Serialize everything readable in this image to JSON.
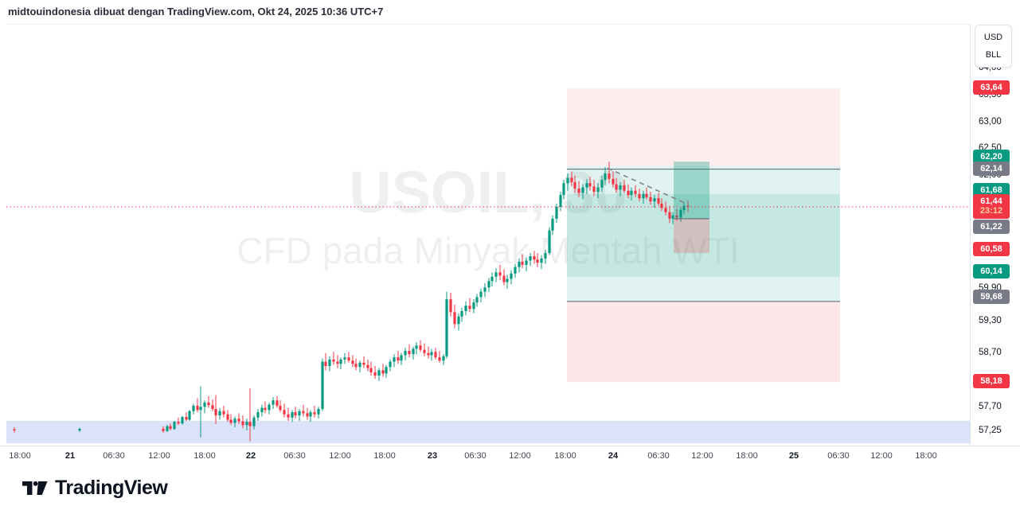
{
  "header": {
    "attribution": "midtouindonesia dibuat dengan TradingView.com, Okt 24, 2025 10:36 UTC+7"
  },
  "watermark": {
    "line1": "USOIL, 30",
    "line2": "CFD pada Minyak Mentah WTI"
  },
  "currency_toggle": {
    "options": [
      "USD",
      "BLL"
    ]
  },
  "footer": {
    "brand": "TradingView"
  },
  "colors": {
    "up": "#089981",
    "down": "#f23645",
    "neutral_badge": "#787b86",
    "axis_border": "#e0e3eb"
  },
  "chart_data": {
    "type": "candlestick",
    "symbol": "USOIL",
    "interval": "30",
    "description": "CFD pada Minyak Mentah WTI",
    "last_price": 61.44,
    "countdown": "23:12",
    "ylim": [
      56.98,
      64.83
    ],
    "price_axis": {
      "plain_ticks": [
        {
          "label": "64,00",
          "price": 64.0
        },
        {
          "label": "63,50",
          "price": 63.5
        },
        {
          "label": "63,00",
          "price": 63.0
        },
        {
          "label": "62,50",
          "price": 62.5
        },
        {
          "label": "62,00",
          "price": 62.0
        },
        {
          "label": "59,90",
          "price": 59.9
        },
        {
          "label": "59,30",
          "price": 59.3
        },
        {
          "label": "58,70",
          "price": 58.7
        },
        {
          "label": "57,70",
          "price": 57.7
        },
        {
          "label": "57,25",
          "price": 57.25
        }
      ],
      "badges": [
        {
          "label": "63,64",
          "price": 63.64,
          "color": "#f23645",
          "shift": 0
        },
        {
          "label": "62,20",
          "price": 62.2,
          "color": "#089981",
          "shift": -11
        },
        {
          "label": "62,14",
          "price": 62.14,
          "color": "#787b86",
          "shift": 0
        },
        {
          "label": "61,68",
          "price": 61.68,
          "color": "#089981",
          "shift": -4
        },
        {
          "label": "61,44",
          "price": 61.44,
          "color": "#f23645",
          "shift": 0,
          "sub": "23:12",
          "tall": true
        },
        {
          "label": "61,22",
          "price": 61.22,
          "color": "#787b86",
          "shift": 11
        },
        {
          "label": "60,58",
          "price": 60.58,
          "color": "#f23645",
          "shift": -4
        },
        {
          "label": "60,14",
          "price": 60.14,
          "color": "#089981",
          "shift": -6
        },
        {
          "label": "59,68",
          "price": 59.68,
          "color": "#787b86",
          "shift": -5
        },
        {
          "label": "58,18",
          "price": 58.18,
          "color": "#f23645",
          "shift": 0
        }
      ]
    },
    "time_axis": [
      {
        "label": "18:00",
        "x": 25
      },
      {
        "label": "21",
        "x": 88,
        "bold": true
      },
      {
        "label": "06:30",
        "x": 143
      },
      {
        "label": "12:00",
        "x": 200
      },
      {
        "label": "18:00",
        "x": 257
      },
      {
        "label": "22",
        "x": 315,
        "bold": true
      },
      {
        "label": "06:30",
        "x": 370
      },
      {
        "label": "12:00",
        "x": 427
      },
      {
        "label": "18:00",
        "x": 483
      },
      {
        "label": "23",
        "x": 543,
        "bold": true
      },
      {
        "label": "06:30",
        "x": 597
      },
      {
        "label": "12:00",
        "x": 653
      },
      {
        "label": "18:00",
        "x": 710
      },
      {
        "label": "24",
        "x": 770,
        "bold": true
      },
      {
        "label": "06:30",
        "x": 827
      },
      {
        "label": "12:00",
        "x": 882
      },
      {
        "label": "18:00",
        "x": 938
      },
      {
        "label": "25",
        "x": 997,
        "bold": true
      },
      {
        "label": "06:30",
        "x": 1053
      },
      {
        "label": "12:00",
        "x": 1107
      },
      {
        "label": "18:00",
        "x": 1163
      }
    ],
    "session_band": {
      "p1": 57.46,
      "p2": 57.04,
      "fill": "#dbe3fb"
    },
    "zones": [
      {
        "name": "pink-zone-upper",
        "x1": 712,
        "x2": 1055,
        "p1": 63.64,
        "p2": 62.2,
        "fill": "rgba(242,54,69,0.09)"
      },
      {
        "name": "teal-zone-a",
        "x1": 712,
        "x2": 1055,
        "p1": 62.2,
        "p2": 60.14,
        "fill": "rgba(8,153,129,0.12)"
      },
      {
        "name": "teal-zone-b",
        "x1": 712,
        "x2": 1055,
        "p1": 61.68,
        "p2": 59.68,
        "fill": "rgba(8,153,129,0.12)"
      },
      {
        "name": "pink-zone-lower",
        "x1": 712,
        "x2": 1055,
        "p1": 59.68,
        "p2": 58.18,
        "fill": "rgba(242,54,69,0.12)"
      }
    ],
    "hlines": [
      {
        "name": "level-62-14",
        "price": 62.14,
        "x1": 712,
        "x2": 1055,
        "color": "#5b5e67"
      },
      {
        "name": "level-59-68",
        "price": 59.68,
        "x1": 712,
        "x2": 1055,
        "color": "#5b5e67"
      }
    ],
    "position_tool": {
      "x1": 846,
      "x2": 891,
      "profit_top": 62.28,
      "entry": 61.22,
      "stop": 60.58,
      "profit_fill": "rgba(8,153,129,0.32)",
      "stop_fill": "rgba(242,54,69,0.22)",
      "entry_color": "#5b5e67"
    },
    "trendline": {
      "x1": 763,
      "p1": 62.16,
      "x2": 862,
      "p2": 61.5,
      "color": "#80838e"
    },
    "last_price_line": {
      "price": 61.44,
      "color": "#f23645"
    },
    "candles": [
      [
        18,
        57.3,
        57.34,
        57.24,
        57.28
      ],
      [
        100,
        57.28,
        57.33,
        57.25,
        57.31
      ],
      [
        205,
        57.31,
        57.36,
        57.24,
        57.27
      ],
      [
        210,
        57.27,
        57.38,
        57.25,
        57.36
      ],
      [
        214,
        57.36,
        57.41,
        57.28,
        57.31
      ],
      [
        219,
        57.31,
        57.46,
        57.29,
        57.44
      ],
      [
        224,
        57.44,
        57.52,
        57.38,
        57.41
      ],
      [
        229,
        57.41,
        57.55,
        57.39,
        57.53
      ],
      [
        234,
        57.53,
        57.62,
        57.45,
        57.48
      ],
      [
        238,
        57.48,
        57.66,
        57.46,
        57.64
      ],
      [
        243,
        57.64,
        57.78,
        57.58,
        57.74
      ],
      [
        248,
        57.74,
        57.88,
        57.62,
        57.66
      ],
      [
        252,
        57.66,
        58.1,
        57.15,
        57.72
      ],
      [
        257,
        57.72,
        57.84,
        57.6,
        57.8
      ],
      [
        262,
        57.8,
        57.92,
        57.7,
        57.75
      ],
      [
        267,
        57.75,
        57.86,
        57.64,
        57.68
      ],
      [
        271,
        57.68,
        57.94,
        57.4,
        57.56
      ],
      [
        276,
        57.56,
        57.7,
        57.48,
        57.64
      ],
      [
        281,
        57.64,
        57.74,
        57.52,
        57.58
      ],
      [
        286,
        57.58,
        57.66,
        57.44,
        57.48
      ],
      [
        290,
        57.48,
        57.58,
        57.38,
        57.42
      ],
      [
        295,
        57.42,
        57.54,
        57.34,
        57.5
      ],
      [
        300,
        57.5,
        57.6,
        57.4,
        57.45
      ],
      [
        305,
        57.45,
        57.56,
        57.32,
        57.38
      ],
      [
        310,
        57.38,
        57.5,
        57.28,
        57.44
      ],
      [
        314,
        57.44,
        58.06,
        57.08,
        57.36
      ],
      [
        319,
        57.36,
        57.56,
        57.3,
        57.52
      ],
      [
        324,
        57.52,
        57.68,
        57.46,
        57.62
      ],
      [
        329,
        57.62,
        57.76,
        57.54,
        57.7
      ],
      [
        333,
        57.7,
        57.82,
        57.6,
        57.66
      ],
      [
        338,
        57.66,
        57.8,
        57.58,
        57.76
      ],
      [
        343,
        57.76,
        57.9,
        57.68,
        57.84
      ],
      [
        348,
        57.84,
        57.92,
        57.7,
        57.74
      ],
      [
        352,
        57.74,
        57.84,
        57.62,
        57.66
      ],
      [
        357,
        57.66,
        57.78,
        57.52,
        57.58
      ],
      [
        362,
        57.58,
        57.7,
        57.46,
        57.52
      ],
      [
        367,
        57.52,
        57.66,
        57.44,
        57.62
      ],
      [
        371,
        57.62,
        57.72,
        57.5,
        57.56
      ],
      [
        376,
        57.56,
        57.68,
        57.46,
        57.64
      ],
      [
        381,
        57.64,
        57.76,
        57.54,
        57.6
      ],
      [
        386,
        57.6,
        57.7,
        57.48,
        57.54
      ],
      [
        390,
        57.54,
        57.66,
        57.44,
        57.62
      ],
      [
        395,
        57.62,
        57.74,
        57.52,
        57.58
      ],
      [
        400,
        57.58,
        57.72,
        57.5,
        57.68
      ],
      [
        405,
        57.68,
        58.62,
        57.64,
        58.56
      ],
      [
        409,
        58.56,
        58.72,
        58.4,
        58.48
      ],
      [
        414,
        58.48,
        58.66,
        58.38,
        58.6
      ],
      [
        419,
        58.6,
        58.74,
        58.5,
        58.56
      ],
      [
        424,
        58.56,
        58.68,
        58.44,
        58.52
      ],
      [
        428,
        58.52,
        58.64,
        58.42,
        58.6
      ],
      [
        433,
        58.6,
        58.72,
        58.52,
        58.64
      ],
      [
        438,
        58.64,
        58.74,
        58.54,
        58.58
      ],
      [
        443,
        58.58,
        58.68,
        58.46,
        58.52
      ],
      [
        447,
        58.52,
        58.62,
        58.4,
        58.46
      ],
      [
        452,
        58.46,
        58.58,
        58.36,
        58.54
      ],
      [
        457,
        58.54,
        58.66,
        58.44,
        58.5
      ],
      [
        462,
        58.5,
        58.6,
        58.38,
        58.44
      ],
      [
        466,
        58.44,
        58.56,
        58.3,
        58.36
      ],
      [
        471,
        58.36,
        58.48,
        58.24,
        58.3
      ],
      [
        476,
        58.3,
        58.44,
        58.2,
        58.4
      ],
      [
        481,
        58.4,
        58.52,
        58.28,
        58.34
      ],
      [
        485,
        58.34,
        58.5,
        58.26,
        58.46
      ],
      [
        490,
        58.46,
        58.6,
        58.38,
        58.56
      ],
      [
        495,
        58.56,
        58.7,
        58.46,
        58.64
      ],
      [
        500,
        58.64,
        58.76,
        58.52,
        58.58
      ],
      [
        504,
        58.58,
        58.72,
        58.5,
        58.68
      ],
      [
        509,
        58.68,
        58.82,
        58.58,
        58.76
      ],
      [
        514,
        58.76,
        58.88,
        58.64,
        58.7
      ],
      [
        519,
        58.7,
        58.84,
        58.6,
        58.8
      ],
      [
        523,
        58.8,
        58.92,
        58.7,
        58.86
      ],
      [
        528,
        58.86,
        58.96,
        58.74,
        58.78
      ],
      [
        533,
        58.78,
        58.9,
        58.66,
        58.72
      ],
      [
        538,
        58.72,
        58.84,
        58.62,
        58.68
      ],
      [
        542,
        58.68,
        58.8,
        58.58,
        58.74
      ],
      [
        547,
        58.74,
        58.82,
        58.6,
        58.64
      ],
      [
        552,
        58.64,
        58.76,
        58.54,
        58.58
      ],
      [
        557,
        58.58,
        58.7,
        58.5,
        58.66
      ],
      [
        561,
        58.66,
        59.86,
        58.62,
        59.72
      ],
      [
        566,
        59.72,
        59.84,
        59.4,
        59.48
      ],
      [
        571,
        59.48,
        59.62,
        59.18,
        59.26
      ],
      [
        576,
        59.26,
        59.46,
        59.14,
        59.4
      ],
      [
        580,
        59.4,
        59.56,
        59.3,
        59.5
      ],
      [
        585,
        59.5,
        59.68,
        59.42,
        59.6
      ],
      [
        590,
        59.6,
        59.74,
        59.48,
        59.54
      ],
      [
        595,
        59.54,
        59.72,
        59.46,
        59.66
      ],
      [
        599,
        59.66,
        59.82,
        59.58,
        59.76
      ],
      [
        604,
        59.76,
        59.92,
        59.66,
        59.86
      ],
      [
        609,
        59.86,
        60.02,
        59.76,
        59.94
      ],
      [
        614,
        59.94,
        60.12,
        59.86,
        60.06
      ],
      [
        618,
        60.06,
        60.22,
        59.96,
        60.14
      ],
      [
        623,
        60.14,
        60.3,
        60.04,
        60.22
      ],
      [
        628,
        60.22,
        60.36,
        60.08,
        60.16
      ],
      [
        633,
        60.16,
        60.28,
        59.98,
        60.04
      ],
      [
        637,
        60.04,
        60.18,
        59.92,
        60.1
      ],
      [
        642,
        60.1,
        60.26,
        60.0,
        60.2
      ],
      [
        647,
        60.2,
        60.38,
        60.12,
        60.32
      ],
      [
        652,
        60.32,
        60.48,
        60.22,
        60.42
      ],
      [
        656,
        60.42,
        60.56,
        60.3,
        60.36
      ],
      [
        661,
        60.36,
        60.5,
        60.24,
        60.44
      ],
      [
        666,
        60.44,
        60.58,
        60.34,
        60.52
      ],
      [
        671,
        60.52,
        60.62,
        60.38,
        60.46
      ],
      [
        675,
        60.46,
        60.58,
        60.32,
        60.4
      ],
      [
        680,
        60.4,
        60.54,
        60.28,
        60.48
      ],
      [
        685,
        60.48,
        60.64,
        60.38,
        60.58
      ],
      [
        690,
        60.58,
        61.06,
        60.54,
        61.0
      ],
      [
        694,
        61.0,
        61.28,
        60.92,
        61.22
      ],
      [
        699,
        61.22,
        61.5,
        61.14,
        61.44
      ],
      [
        704,
        61.44,
        61.72,
        61.36,
        61.66
      ],
      [
        708,
        61.66,
        61.94,
        61.58,
        61.88
      ],
      [
        713,
        61.88,
        62.06,
        61.74,
        61.98
      ],
      [
        718,
        61.98,
        62.1,
        61.82,
        61.9
      ],
      [
        722,
        61.9,
        62.02,
        61.7,
        61.78
      ],
      [
        727,
        61.78,
        61.92,
        61.62,
        61.7
      ],
      [
        732,
        61.7,
        61.86,
        61.58,
        61.8
      ],
      [
        737,
        61.8,
        61.96,
        61.68,
        61.88
      ],
      [
        741,
        61.88,
        62.0,
        61.74,
        61.82
      ],
      [
        746,
        61.82,
        61.94,
        61.64,
        61.72
      ],
      [
        751,
        61.72,
        61.88,
        61.6,
        61.8
      ],
      [
        756,
        61.8,
        62.02,
        61.72,
        61.94
      ],
      [
        760,
        61.94,
        62.18,
        61.84,
        62.06
      ],
      [
        765,
        62.06,
        62.28,
        61.88,
        61.96
      ],
      [
        770,
        61.96,
        62.1,
        61.8,
        61.86
      ],
      [
        774,
        61.86,
        61.98,
        61.7,
        61.76
      ],
      [
        779,
        61.76,
        61.9,
        61.64,
        61.84
      ],
      [
        784,
        61.84,
        61.94,
        61.7,
        61.74
      ],
      [
        789,
        61.74,
        61.86,
        61.6,
        61.66
      ],
      [
        793,
        61.66,
        61.8,
        61.56,
        61.74
      ],
      [
        798,
        61.74,
        61.84,
        61.62,
        61.68
      ],
      [
        803,
        61.68,
        61.78,
        61.54,
        61.6
      ],
      [
        808,
        61.6,
        61.74,
        61.5,
        61.68
      ],
      [
        812,
        61.68,
        61.8,
        61.58,
        61.62
      ],
      [
        817,
        61.62,
        61.72,
        61.48,
        61.54
      ],
      [
        822,
        61.54,
        61.66,
        61.42,
        61.6
      ],
      [
        827,
        61.6,
        61.7,
        61.46,
        61.5
      ],
      [
        831,
        61.5,
        61.6,
        61.36,
        61.42
      ],
      [
        836,
        61.42,
        61.54,
        61.28,
        61.34
      ],
      [
        841,
        61.34,
        61.46,
        61.14,
        61.22
      ],
      [
        845,
        61.22,
        61.34,
        61.12,
        61.28
      ],
      [
        850,
        61.28,
        61.4,
        61.18,
        61.24
      ],
      [
        855,
        61.24,
        61.42,
        61.16,
        61.38
      ],
      [
        859,
        61.38,
        61.52,
        61.3,
        61.46
      ],
      [
        864,
        61.46,
        61.56,
        61.34,
        61.44
      ]
    ]
  }
}
